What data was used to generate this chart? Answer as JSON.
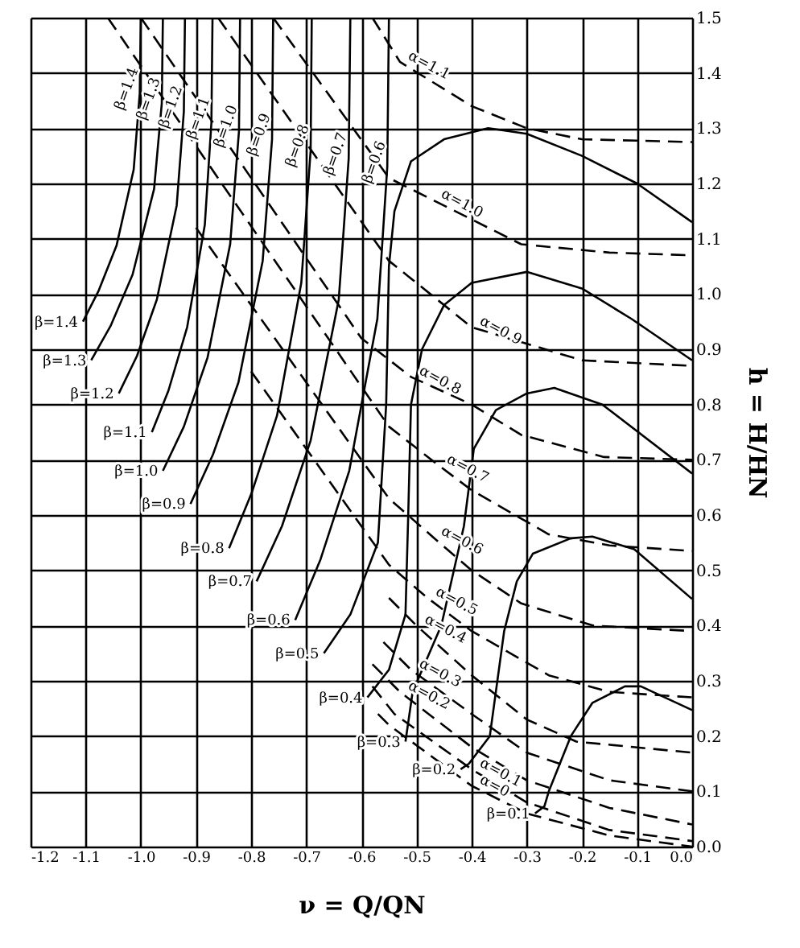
{
  "chart_data": {
    "type": "line",
    "xlabel": "ν = Q/QN",
    "ylabel": "h = H/HN",
    "xlim": [
      -1.2,
      0.0
    ],
    "ylim": [
      0.0,
      1.5
    ],
    "xticks": [
      -1.2,
      -1.1,
      {
        "value": -1.0,
        "label": "-1.0"
      },
      -0.9,
      -0.8,
      -0.7,
      -0.6,
      -0.5,
      -0.4,
      -0.3,
      -0.2,
      -0.1,
      {
        "value": 0.0,
        "label": "0.0"
      }
    ],
    "yticks": [
      {
        "value": 0.0,
        "label": "0.0"
      },
      0.1,
      0.2,
      0.3,
      0.4,
      0.5,
      0.6,
      0.7,
      0.8,
      0.9,
      {
        "value": 1.0,
        "label": "1.0"
      },
      1.1,
      1.2,
      1.3,
      1.4,
      1.5
    ],
    "grid": true,
    "marker": "none",
    "series": [
      {
        "name": "α=1.1",
        "color": "#000000",
        "line_style": "dashed",
        "x": [
          -0.58,
          -0.53,
          -0.4,
          -0.3,
          -0.2,
          0.0
        ],
        "values": [
          1.5,
          1.42,
          1.34,
          1.3,
          1.28,
          1.275
        ]
      },
      {
        "name": "α=1.0",
        "color": "#000000",
        "line_style": "dashed",
        "x": [
          -0.76,
          -0.55,
          -0.47,
          -0.31,
          -0.15,
          0.0
        ],
        "values": [
          1.5,
          1.21,
          1.17,
          1.09,
          1.075,
          1.07
        ]
      },
      {
        "name": "α=0.9",
        "color": "#000000",
        "line_style": "dashed",
        "x": [
          -0.86,
          -0.55,
          -0.4,
          -0.2,
          0.0
        ],
        "values": [
          1.5,
          1.06,
          0.94,
          0.88,
          0.87
        ]
      },
      {
        "name": "α=0.8",
        "color": "#000000",
        "line_style": "dashed",
        "x": [
          -1.0,
          -0.6,
          -0.51,
          -0.4,
          -0.31,
          -0.16,
          0.0
        ],
        "values": [
          1.5,
          0.92,
          0.85,
          0.8,
          0.745,
          0.705,
          0.7
        ]
      },
      {
        "name": "α=0.7",
        "color": "#000000",
        "line_style": "dashed",
        "x": [
          -1.06,
          -0.55,
          -0.46,
          -0.4,
          -0.26,
          -0.15,
          0.0
        ],
        "values": [
          1.5,
          0.76,
          0.69,
          0.645,
          0.565,
          0.545,
          0.535
        ]
      },
      {
        "name": "α=0.6",
        "color": "#000000",
        "line_style": "dashed",
        "x": [
          -0.9,
          -0.55,
          -0.47,
          -0.4,
          -0.31,
          -0.18,
          0.0
        ],
        "values": [
          1.12,
          0.63,
          0.56,
          0.5,
          0.44,
          0.4,
          0.39
        ]
      },
      {
        "name": "α=0.5",
        "color": "#000000",
        "line_style": "dashed",
        "x": [
          -0.8,
          -0.55,
          -0.48,
          -0.4,
          -0.26,
          -0.15,
          0.0
        ],
        "values": [
          0.86,
          0.51,
          0.45,
          0.39,
          0.31,
          0.28,
          0.27
        ]
      },
      {
        "name": "α=0.4",
        "color": "#000000",
        "line_style": "dashed",
        "x": [
          -0.55,
          -0.5,
          -0.4,
          -0.3,
          -0.21,
          0.0
        ],
        "values": [
          0.45,
          0.4,
          0.31,
          0.23,
          0.19,
          0.17
        ]
      },
      {
        "name": "α=0.3",
        "color": "#000000",
        "line_style": "dashed",
        "x": [
          -0.56,
          -0.51,
          -0.4,
          -0.3,
          -0.15,
          0.0
        ],
        "values": [
          0.37,
          0.32,
          0.24,
          0.17,
          0.12,
          0.1
        ]
      },
      {
        "name": "α=0.2",
        "color": "#000000",
        "line_style": "dashed",
        "x": [
          -0.58,
          -0.53,
          -0.4,
          -0.3,
          -0.15,
          0.0
        ],
        "values": [
          0.33,
          0.28,
          0.18,
          0.12,
          0.07,
          0.04
        ]
      },
      {
        "name": "α=0.1",
        "color": "#000000",
        "line_style": "dashed",
        "x": [
          -0.58,
          -0.54,
          -0.4,
          -0.3,
          -0.15,
          0.0
        ],
        "values": [
          0.29,
          0.24,
          0.14,
          0.08,
          0.03,
          0.01
        ]
      },
      {
        "name": "α=0",
        "color": "#000000",
        "line_style": "dashed",
        "x": [
          -0.57,
          -0.55,
          -0.4,
          -0.3,
          -0.15,
          0.0
        ],
        "values": [
          0.24,
          0.22,
          0.11,
          0.06,
          0.02,
          0.0
        ]
      },
      {
        "name": "β=1.4",
        "color": "#000000",
        "line_style": "solid",
        "x": [
          -1.105,
          -1.077,
          -1.044,
          -1.013,
          -1.002,
          -1.0
        ],
        "values": [
          0.95,
          1.005,
          1.088,
          1.225,
          1.363,
          1.5
        ]
      },
      {
        "name": "β=1.3",
        "color": "#000000",
        "line_style": "solid",
        "x": [
          -1.09,
          -1.055,
          -1.015,
          -0.976,
          -0.962,
          -0.96
        ],
        "values": [
          0.88,
          0.942,
          1.035,
          1.19,
          1.345,
          1.5
        ]
      },
      {
        "name": "β=1.2",
        "color": "#000000",
        "line_style": "solid",
        "x": [
          -1.04,
          -1.007,
          -0.971,
          -0.935,
          -0.922,
          -0.92
        ],
        "values": [
          0.82,
          0.888,
          0.99,
          1.16,
          1.33,
          1.5
        ]
      },
      {
        "name": "β=1.1",
        "color": "#000000",
        "line_style": "solid",
        "x": [
          -0.98,
          -0.95,
          -0.916,
          -0.884,
          -0.872,
          -0.87
        ],
        "values": [
          0.75,
          0.825,
          0.94,
          1.125,
          1.31,
          1.5
        ]
      },
      {
        "name": "β=1.0",
        "color": "#000000",
        "line_style": "solid",
        "x": [
          -0.96,
          -0.922,
          -0.879,
          -0.838,
          -0.822,
          -0.82
        ],
        "values": [
          0.68,
          0.76,
          0.885,
          1.09,
          1.295,
          1.5
        ]
      },
      {
        "name": "β=0.9",
        "color": "#000000",
        "line_style": "solid",
        "x": [
          -0.91,
          -0.869,
          -0.823,
          -0.779,
          -0.762,
          -0.76
        ],
        "values": [
          0.62,
          0.71,
          0.84,
          1.06,
          1.28,
          1.5
        ]
      },
      {
        "name": "β=0.8",
        "color": "#000000",
        "line_style": "solid",
        "x": [
          -0.84,
          -0.799,
          -0.753,
          -0.709,
          -0.692,
          -0.69
        ],
        "values": [
          0.54,
          0.64,
          0.78,
          1.02,
          1.26,
          1.5
        ]
      },
      {
        "name": "β=0.7",
        "color": "#000000",
        "line_style": "solid",
        "x": [
          -0.79,
          -0.744,
          -0.692,
          -0.641,
          -0.623,
          -0.62
        ],
        "values": [
          0.48,
          0.58,
          0.735,
          0.99,
          1.245,
          1.5
        ]
      },
      {
        "name": "β=0.6",
        "color": "#000000",
        "line_style": "solid",
        "x": [
          -0.72,
          -0.674,
          -0.622,
          -0.571,
          -0.553,
          -0.55
        ],
        "values": [
          0.41,
          0.52,
          0.68,
          0.955,
          1.23,
          1.5
        ]
      },
      {
        "name": "β=0.5",
        "color": "#000000",
        "line_style": "solid",
        "x": [
          -0.668,
          -0.62,
          -0.57,
          -0.555,
          -0.55,
          -0.54,
          -0.51,
          -0.45,
          -0.37,
          -0.3,
          -0.2,
          -0.1,
          0.0
        ],
        "values": [
          0.35,
          0.42,
          0.55,
          0.8,
          1.05,
          1.15,
          1.24,
          1.28,
          1.3,
          1.29,
          1.25,
          1.2,
          1.13
        ]
      },
      {
        "name": "β=0.4",
        "color": "#000000",
        "line_style": "solid",
        "x": [
          -0.589,
          -0.55,
          -0.52,
          -0.515,
          -0.51,
          -0.49,
          -0.45,
          -0.4,
          -0.3,
          -0.2,
          -0.11,
          0.0
        ],
        "values": [
          0.27,
          0.32,
          0.42,
          0.6,
          0.8,
          0.9,
          0.98,
          1.02,
          1.04,
          1.01,
          0.955,
          0.88
        ]
      },
      {
        "name": "β=0.3",
        "color": "#000000",
        "line_style": "solid",
        "x": [
          -0.52,
          -0.507,
          -0.455,
          -0.414,
          -0.396,
          -0.356,
          -0.3,
          -0.25,
          -0.163,
          0.0
        ],
        "values": [
          0.19,
          0.28,
          0.4,
          0.58,
          0.72,
          0.79,
          0.82,
          0.83,
          0.8,
          0.675
        ]
      },
      {
        "name": "β=0.2",
        "color": "#000000",
        "line_style": "solid",
        "x": [
          -0.42,
          -0.405,
          -0.367,
          -0.341,
          -0.318,
          -0.289,
          -0.22,
          -0.181,
          -0.105,
          0.0
        ],
        "values": [
          0.14,
          0.15,
          0.2,
          0.39,
          0.48,
          0.53,
          0.558,
          0.561,
          0.538,
          0.448
        ]
      },
      {
        "name": "β=0.1",
        "color": "#000000",
        "line_style": "solid",
        "x": [
          -0.285,
          -0.268,
          -0.26,
          -0.22,
          -0.181,
          -0.122,
          -0.093,
          0.0
        ],
        "values": [
          0.06,
          0.073,
          0.1,
          0.2,
          0.26,
          0.29,
          0.29,
          0.247
        ]
      }
    ]
  }
}
